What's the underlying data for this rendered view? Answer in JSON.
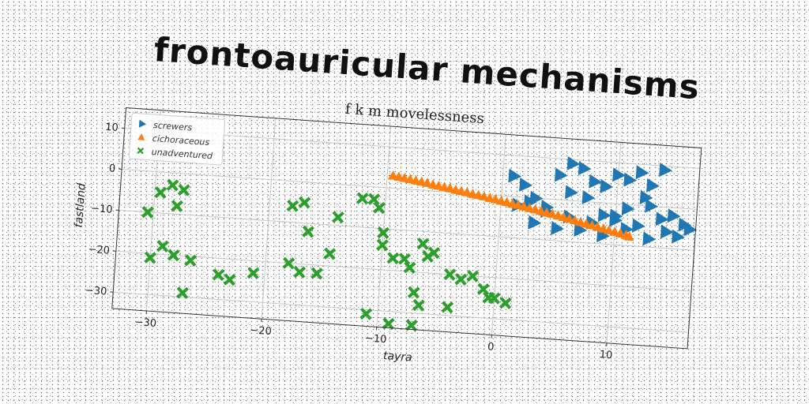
{
  "page": {
    "main_title": "frontoauricular mechanisms"
  },
  "chart_data": {
    "type": "scatter",
    "title": "f k m movelessness",
    "xlabel": "tayra",
    "ylabel": "fastland",
    "xlim": [
      -33,
      17
    ],
    "ylim": [
      -34,
      15
    ],
    "xticks": [
      -30,
      -20,
      -10,
      0,
      10
    ],
    "yticks": [
      10,
      0,
      -10,
      -20,
      -30
    ],
    "grid": true,
    "legend_position": "top-left",
    "series": [
      {
        "name": "screwers",
        "marker": "triangle-right",
        "color": "#1f77b4",
        "points": [
          [
            1,
            5
          ],
          [
            2,
            3
          ],
          [
            3,
            0
          ],
          [
            1.5,
            -2
          ],
          [
            2.5,
            -1
          ],
          [
            4,
            -3
          ],
          [
            5,
            6
          ],
          [
            6,
            9
          ],
          [
            7,
            8
          ],
          [
            8,
            5
          ],
          [
            6,
            2
          ],
          [
            7.5,
            1
          ],
          [
            9,
            4
          ],
          [
            10,
            7
          ],
          [
            11,
            6
          ],
          [
            12,
            8
          ],
          [
            13,
            5
          ],
          [
            12.5,
            2
          ],
          [
            14,
            9
          ],
          [
            11,
            -1
          ],
          [
            9,
            -3
          ],
          [
            8,
            -5
          ],
          [
            10,
            -4
          ],
          [
            12,
            -5
          ],
          [
            13,
            0
          ],
          [
            14,
            -3
          ],
          [
            15,
            -2
          ],
          [
            16,
            -4
          ],
          [
            14.5,
            -6
          ],
          [
            15.5,
            -7
          ],
          [
            16.5,
            -5
          ],
          [
            3,
            -6
          ],
          [
            5,
            -7
          ],
          [
            7,
            -7
          ],
          [
            9,
            -8
          ],
          [
            11,
            -6
          ],
          [
            13,
            -8
          ],
          [
            10,
            -3
          ],
          [
            6,
            -4
          ],
          [
            4,
            -2
          ]
        ]
      },
      {
        "name": "cichoraceous",
        "marker": "triangle-up",
        "color": "#ff7f0e",
        "points": [
          [
            -9.5,
            3
          ],
          [
            -9,
            2.8
          ],
          [
            -8.5,
            2.6
          ],
          [
            -8,
            2.4
          ],
          [
            -7.5,
            2.2
          ],
          [
            -7,
            2
          ],
          [
            -6.5,
            1.8
          ],
          [
            -6,
            1.5
          ],
          [
            -5.5,
            1.3
          ],
          [
            -5,
            1.1
          ],
          [
            -4.5,
            0.9
          ],
          [
            -4,
            0.6
          ],
          [
            -3.5,
            0.4
          ],
          [
            -3,
            0.2
          ],
          [
            -2.5,
            -0.1
          ],
          [
            -2,
            -0.3
          ],
          [
            -1.5,
            -0.5
          ],
          [
            -1,
            -0.8
          ],
          [
            -0.5,
            -1
          ],
          [
            0,
            -1.3
          ],
          [
            0.5,
            -1.5
          ],
          [
            1,
            -1.8
          ],
          [
            1.5,
            -2
          ],
          [
            2,
            -2.3
          ],
          [
            2.5,
            -2.6
          ],
          [
            3,
            -2.8
          ],
          [
            3.5,
            -3.1
          ],
          [
            4,
            -3.4
          ],
          [
            4.5,
            -3.6
          ],
          [
            5,
            -3.9
          ],
          [
            5.5,
            -4.2
          ],
          [
            6,
            -4.5
          ],
          [
            6.5,
            -4.8
          ],
          [
            7,
            -5.1
          ],
          [
            7.5,
            -5.4
          ],
          [
            8,
            -5.7
          ],
          [
            8.5,
            -6
          ],
          [
            9,
            -6.3
          ],
          [
            9.5,
            -6.6
          ],
          [
            10,
            -6.9
          ],
          [
            10.5,
            -7.2
          ],
          [
            11,
            -7.5
          ],
          [
            11.3,
            -7.8
          ]
        ]
      },
      {
        "name": "unadventured",
        "marker": "x-cross",
        "color": "#2ca02c",
        "points": [
          [
            -30.5,
            -10
          ],
          [
            -29.5,
            -5
          ],
          [
            -28.5,
            -3
          ],
          [
            -27.5,
            -4
          ],
          [
            -28,
            -8
          ],
          [
            -30,
            -21
          ],
          [
            -29,
            -18
          ],
          [
            -28,
            -20
          ],
          [
            -26.5,
            -21
          ],
          [
            -27,
            -29
          ],
          [
            -24,
            -24
          ],
          [
            -23,
            -25
          ],
          [
            -21,
            -23
          ],
          [
            -18,
            -20
          ],
          [
            -17,
            -22
          ],
          [
            -15.5,
            -22
          ],
          [
            -18,
            -6
          ],
          [
            -17,
            -5
          ],
          [
            -16.5,
            -12
          ],
          [
            -14,
            -8
          ],
          [
            -14.5,
            -17
          ],
          [
            -11,
            -3
          ],
          [
            -10.5,
            -5
          ],
          [
            -10,
            -11
          ],
          [
            -10,
            -14
          ],
          [
            -8,
            -17
          ],
          [
            -7.5,
            -19
          ],
          [
            -6.5,
            -13
          ],
          [
            -6,
            -16
          ],
          [
            -5.5,
            -15
          ],
          [
            -4,
            -20
          ],
          [
            -3,
            -21
          ],
          [
            -2,
            -20
          ],
          [
            -1,
            -23
          ],
          [
            -0.5,
            -25
          ],
          [
            0,
            -25
          ],
          [
            1,
            -26
          ],
          [
            -11,
            -31
          ],
          [
            -7,
            -25
          ],
          [
            -6.5,
            -28
          ],
          [
            -9,
            -33
          ],
          [
            -7,
            -33
          ],
          [
            -4,
            -28
          ],
          [
            -12,
            -3
          ],
          [
            -9,
            -17
          ]
        ]
      }
    ]
  }
}
